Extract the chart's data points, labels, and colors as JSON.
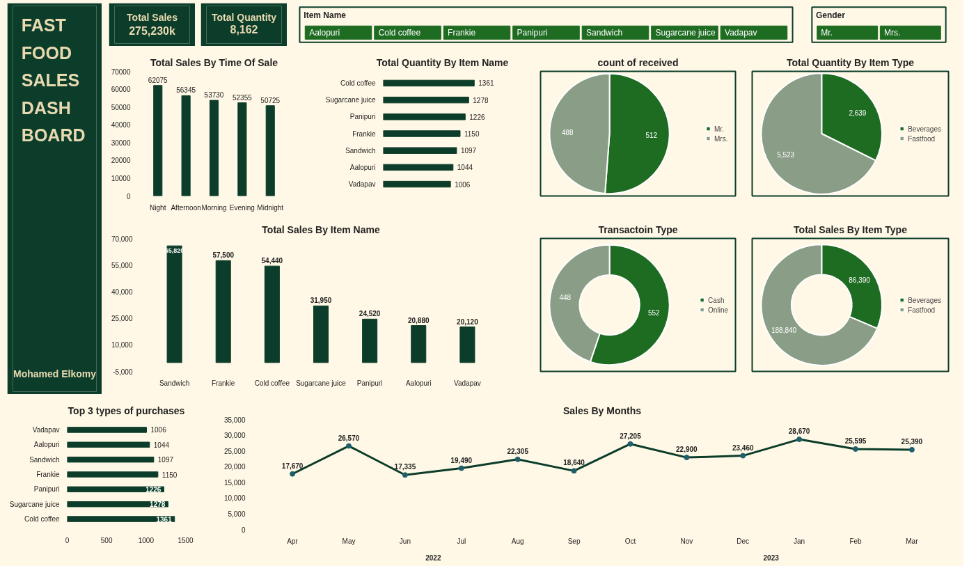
{
  "chart_data": [
    {
      "type": "other",
      "title": "FAST FOOD SALES DASH BOARD",
      "annotations": [
        "Mohamed Elkomy"
      ]
    },
    {
      "type": "other",
      "title": "Total Sales",
      "annotations": [
        "275,230k"
      ]
    },
    {
      "type": "other",
      "title": "Total Quantity",
      "annotations": [
        "8,162"
      ]
    },
    {
      "type": "other",
      "title": "Item Name",
      "annotations": [
        "Aalopuri",
        "Cold coffee",
        "Frankie",
        "Panipuri",
        "Sandwich",
        "Sugarcane juice",
        "Vadapav"
      ]
    },
    {
      "type": "other",
      "title": "Gender",
      "annotations": [
        "Mr.",
        "Mrs."
      ]
    },
    {
      "type": "bar",
      "title": "Total Sales By Time Of Sale",
      "categories": [
        "Night",
        "Afternoon",
        "Morning",
        "Evening",
        "Midnight"
      ],
      "values": [
        62075,
        56345,
        53730,
        52355,
        50725
      ],
      "color": "#0b3d2a",
      "ylim": [
        0,
        70000
      ],
      "yticks": [
        0,
        10000,
        20000,
        30000,
        40000,
        50000,
        60000,
        70000
      ],
      "data_labels": true
    },
    {
      "type": "bar",
      "orientation": "horizontal",
      "title": "Total Quantity By Item Name",
      "categories": [
        "Cold coffee",
        "Sugarcane juice",
        "Panipuri",
        "Frankie",
        "Sandwich",
        "Aalopuri",
        "Vadapav"
      ],
      "values": [
        1361,
        1278,
        1226,
        1150,
        1097,
        1044,
        1006
      ],
      "color": "#0b3d2a",
      "data_labels": true,
      "tick_labels": "y"
    },
    {
      "type": "pie",
      "title": "count of received",
      "categories": [
        "Mr.",
        "Mrs."
      ],
      "values": [
        512,
        488
      ],
      "colors": [
        "#1e6b22",
        "#8a9e87"
      ],
      "data_labels": true,
      "legend": "right"
    },
    {
      "type": "pie",
      "title": "Total Quantity By Item Type",
      "categories": [
        "Beverages",
        "Fastfood"
      ],
      "values": [
        2639,
        5523
      ],
      "colors": [
        "#1e6b22",
        "#8a9e87"
      ],
      "value_labels": [
        "2,639",
        "5,523"
      ],
      "legend": "right"
    },
    {
      "type": "bar",
      "title": "Total Sales By Item Name",
      "categories": [
        "Sandwich",
        "Frankie",
        "Cold coffee",
        "Sugarcane juice",
        "Panipuri",
        "Aalopuri",
        "Vadapav"
      ],
      "values": [
        65820,
        57500,
        54440,
        31950,
        24520,
        20880,
        20120
      ],
      "value_labels": [
        "65,820",
        "57,500",
        "54,440",
        "31,950",
        "24,520",
        "20,880",
        "20,120"
      ],
      "color": "#0b3d2a",
      "ylim": [
        -5000,
        70000
      ],
      "yticks": [
        {
          "value": -5000,
          "label": "-5,000"
        },
        {
          "value": 10000,
          "label": "10,000"
        },
        {
          "value": 25000,
          "label": "25,000"
        },
        {
          "value": 40000,
          "label": "40,000"
        },
        {
          "value": 55000,
          "label": "55,000"
        },
        {
          "value": 70000,
          "label": "70,000"
        }
      ]
    },
    {
      "type": "donut",
      "title": "Transactoin Type",
      "categories": [
        "Cash",
        "Online"
      ],
      "values": [
        552,
        448
      ],
      "colors": [
        "#1e6b22",
        "#8a9e87"
      ],
      "data_labels": true,
      "legend": "right"
    },
    {
      "type": "donut",
      "title": "Total Sales By Item Type",
      "categories": [
        "Beverages",
        "Fastfood"
      ],
      "values": [
        86390,
        188840
      ],
      "colors": [
        "#1e6b22",
        "#8a9e87"
      ],
      "value_labels": [
        "86,390",
        "188,840"
      ],
      "legend": "right"
    },
    {
      "type": "bar",
      "orientation": "horizontal",
      "title": "Top 3 types of purchases",
      "categories": [
        "Vadapav",
        "Aalopuri",
        "Sandwich",
        "Frankie",
        "Panipuri",
        "Sugarcane juice",
        "Cold coffee"
      ],
      "values": [
        1006,
        1044,
        1097,
        1150,
        1226,
        1278,
        1361
      ],
      "color": "#0b3d2a",
      "data_labels": true,
      "xlim": [
        0,
        1500
      ],
      "xticks": [
        0,
        500,
        1000,
        1500
      ]
    },
    {
      "type": "line",
      "title": "Sales By Months",
      "categories": [
        "Apr",
        "May",
        "Jun",
        "Jul",
        "Aug",
        "Sep",
        "Oct",
        "Nov",
        "Dec",
        "Jan",
        "Feb",
        "Mar"
      ],
      "values": [
        17670,
        26570,
        17335,
        19490,
        22305,
        18640,
        27205,
        22900,
        23460,
        28670,
        25595,
        25390
      ],
      "value_labels": [
        "17,670",
        "26,570",
        "17,335",
        "19,490",
        "22,305",
        "18,640",
        "27,205",
        "22,900",
        "23,460",
        "28,670",
        "25,595",
        "25,390"
      ],
      "color": "#0b3d2a",
      "marker": "circle",
      "ylim": [
        0,
        35000
      ],
      "yticks": [
        {
          "value": 0,
          "label": "0"
        },
        {
          "value": 5000,
          "label": "5,000"
        },
        {
          "value": 10000,
          "label": "10,000"
        },
        {
          "value": 15000,
          "label": "15,000"
        },
        {
          "value": 20000,
          "label": "20,000"
        },
        {
          "value": 25000,
          "label": "25,000"
        },
        {
          "value": 30000,
          "label": "30,000"
        },
        {
          "value": 35000,
          "label": "35,000"
        }
      ],
      "annotations": [
        "2022",
        "2023"
      ]
    }
  ]
}
